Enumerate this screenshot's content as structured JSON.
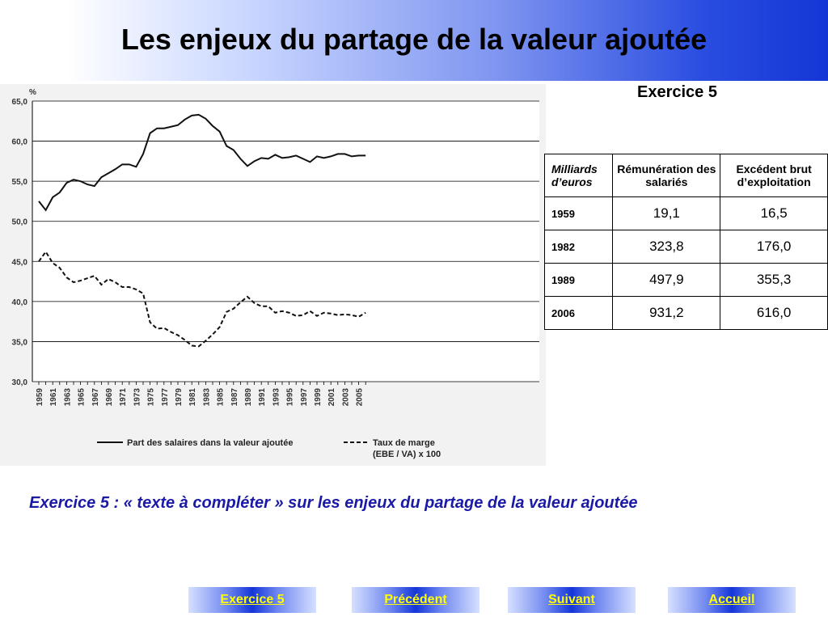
{
  "header": {
    "title": "Les enjeux du partage de la valeur ajoutée"
  },
  "exercise_label": "Exercice 5",
  "table": {
    "unit_label": "Milliards d’euros",
    "columns": [
      "Rémunération des salariés",
      "Excédent brut d’exploitation"
    ],
    "rows": [
      {
        "year": "1959",
        "values": [
          "19,1",
          "16,5"
        ]
      },
      {
        "year": "1982",
        "values": [
          "323,8",
          "176,0"
        ]
      },
      {
        "year": "1989",
        "values": [
          "497,9",
          "355,3"
        ]
      },
      {
        "year": "2006",
        "values": [
          "931,2",
          "616,0"
        ]
      }
    ]
  },
  "caption": "Exercice 5 : « texte à compléter » sur les enjeux du partage de la valeur ajoutée",
  "nav": {
    "exercise": "Exercice 5",
    "previous": "Précédent",
    "next": "Suivant",
    "home": "Accueil",
    "button_color": "#1436d8",
    "text_color": "#ffff00"
  },
  "chart_data": {
    "type": "line",
    "ylabel": "%",
    "ylim": [
      30,
      65
    ],
    "yticks": [
      "30,0",
      "35,0",
      "40,0",
      "45,0",
      "50,0",
      "55,0",
      "60,0",
      "65,0"
    ],
    "xticks": [
      "1959",
      "1961",
      "1963",
      "1965",
      "1967",
      "1969",
      "1971",
      "1973",
      "1975",
      "1977",
      "1979",
      "1981",
      "1983",
      "1985",
      "1987",
      "1989",
      "1991",
      "1993",
      "1995",
      "1997",
      "1999",
      "2001",
      "2003",
      "2005"
    ],
    "x": [
      1959,
      1960,
      1961,
      1962,
      1963,
      1964,
      1965,
      1966,
      1967,
      1968,
      1969,
      1970,
      1971,
      1972,
      1973,
      1974,
      1975,
      1976,
      1977,
      1978,
      1979,
      1980,
      1981,
      1982,
      1983,
      1984,
      1985,
      1986,
      1987,
      1988,
      1989,
      1990,
      1991,
      1992,
      1993,
      1994,
      1995,
      1996,
      1997,
      1998,
      1999,
      2000,
      2001,
      2002,
      2003,
      2004,
      2005,
      2006
    ],
    "grid": true,
    "legend_position": "bottom",
    "series": [
      {
        "name": "Part des salaires dans la valeur ajoutée",
        "style": "solid",
        "values": [
          52.5,
          51.4,
          53.0,
          53.6,
          54.8,
          55.2,
          55.0,
          54.6,
          54.4,
          55.5,
          56.0,
          56.5,
          57.1,
          57.1,
          56.8,
          58.4,
          61.0,
          61.6,
          61.6,
          61.8,
          62.0,
          62.7,
          63.2,
          63.3,
          62.8,
          61.9,
          61.2,
          59.4,
          58.9,
          57.8,
          56.9,
          57.5,
          57.9,
          57.8,
          58.3,
          57.9,
          58.0,
          58.2,
          57.8,
          57.4,
          58.1,
          57.9,
          58.1,
          58.4,
          58.4,
          58.1,
          58.2,
          58.2
        ]
      },
      {
        "name": "Taux de marge (EBE / VA) x 100",
        "style": "dashed",
        "values": [
          45.0,
          46.2,
          44.8,
          44.2,
          43.0,
          42.4,
          42.6,
          42.9,
          43.2,
          42.1,
          42.8,
          42.4,
          41.8,
          41.8,
          41.5,
          41.0,
          37.4,
          36.6,
          36.7,
          36.2,
          35.8,
          35.2,
          34.5,
          34.4,
          35.1,
          35.9,
          36.8,
          38.7,
          39.1,
          39.9,
          40.6,
          39.8,
          39.4,
          39.4,
          38.6,
          38.8,
          38.6,
          38.2,
          38.3,
          38.8,
          38.2,
          38.6,
          38.5,
          38.3,
          38.4,
          38.3,
          38.1,
          38.6
        ]
      }
    ]
  }
}
